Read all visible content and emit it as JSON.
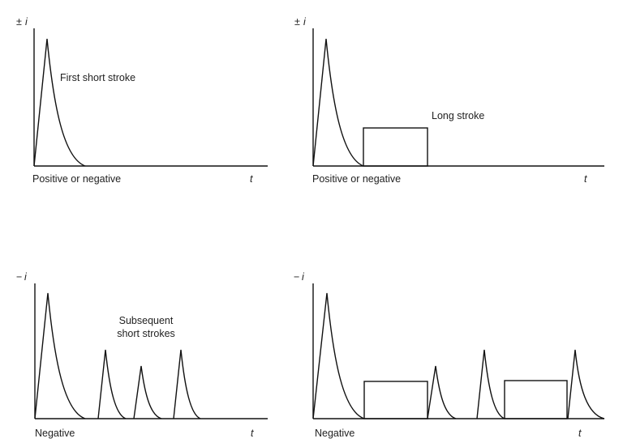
{
  "panels": [
    {
      "axis_sign": "±",
      "axis_variable": "i",
      "annotation": "First short stroke",
      "polarity": "Positive or negative",
      "time_label": "t"
    },
    {
      "axis_sign": "±",
      "axis_variable": "i",
      "annotation": "Long stroke",
      "polarity": "Positive or negative",
      "time_label": "t"
    },
    {
      "axis_sign": "−",
      "axis_variable": "i",
      "annotation_lines": [
        "Subsequent",
        "short strokes"
      ],
      "polarity": "Negative",
      "time_label": "t"
    },
    {
      "axis_sign": "−",
      "axis_variable": "i",
      "polarity": "Negative",
      "time_label": "t"
    }
  ]
}
